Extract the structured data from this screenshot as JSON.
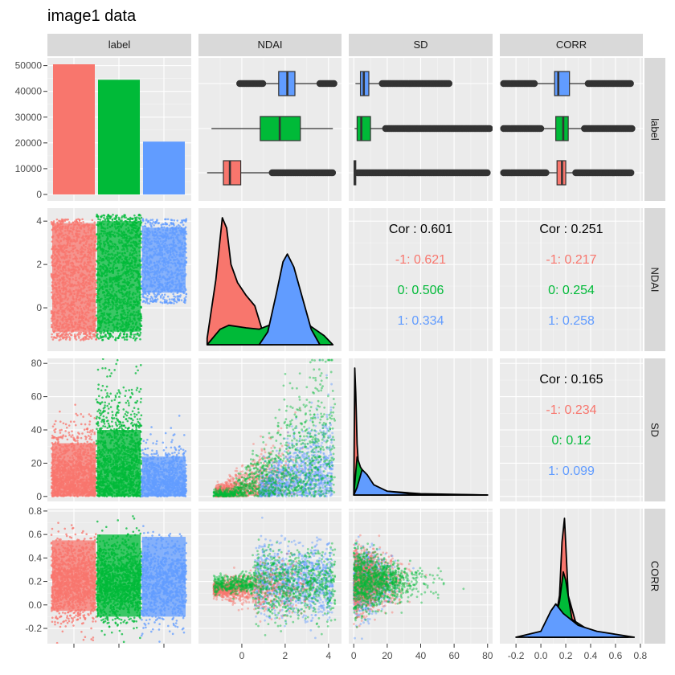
{
  "title": "image1 data",
  "colors": {
    "neg1": "#F8766D",
    "zero": "#00BA38",
    "one": "#619CFF",
    "panel": "#EBEBEB",
    "strip": "#D9D9D9",
    "grid": "#FFFFFF"
  },
  "chart_data": {
    "type": "pairs",
    "variables": [
      "label",
      "NDAI",
      "SD",
      "CORR"
    ],
    "groups": [
      "-1",
      "0",
      "1"
    ],
    "axes": {
      "label_count": {
        "ticks": [
          "0",
          "10000",
          "20000",
          "30000",
          "40000",
          "50000"
        ],
        "ylim": [
          -2500,
          53000
        ]
      },
      "NDAI": {
        "ticks": [
          "0",
          "2",
          "4"
        ],
        "xlim": [
          -2.0,
          4.6
        ],
        "y_ticks": [
          "0",
          "2",
          "4"
        ]
      },
      "SD": {
        "ticks": [
          "0",
          "20",
          "40",
          "60",
          "80"
        ],
        "xlim": [
          -3,
          83
        ]
      },
      "CORR": {
        "ticks": [
          "-0.2",
          "0.0",
          "0.2",
          "0.4",
          "0.6",
          "0.8"
        ],
        "ylim": [
          -0.33,
          0.82
        ],
        "x_ticks": [
          "-0.2",
          "0.0",
          "0.2",
          "0.4",
          "0.6",
          "0.8"
        ]
      }
    },
    "label_counts": [
      {
        "group": "-1",
        "value": 50500
      },
      {
        "group": "0",
        "value": 44500
      },
      {
        "group": "1",
        "value": 20500
      }
    ],
    "boxplots": {
      "NDAI": [
        {
          "group": "-1",
          "q1": -0.85,
          "median": -0.55,
          "q3": -0.05,
          "whisker_low": -1.6,
          "whisker_high": 1.4,
          "outlier_max": 4.2
        },
        {
          "group": "0",
          "q1": 0.85,
          "median": 1.75,
          "q3": 2.7,
          "whisker_low": -1.4,
          "whisker_high": 4.2
        },
        {
          "group": "1",
          "q1": 1.7,
          "median": 2.1,
          "q3": 2.45,
          "whisker_low": 1.0,
          "whisker_high": 3.6,
          "outlier_min": -0.1,
          "outlier_max": 4.3
        }
      ],
      "SD": [
        {
          "group": "-1",
          "q1": 0.2,
          "median": 0.5,
          "q3": 1.2,
          "whisker_low": 0,
          "whisker_high": 2.2,
          "outlier_max": 80
        },
        {
          "group": "0",
          "q1": 2,
          "median": 4.5,
          "q3": 10,
          "whisker_low": 0.5,
          "whisker_high": 19,
          "outlier_max": 82
        },
        {
          "group": "1",
          "q1": 4,
          "median": 6,
          "q3": 9,
          "whisker_low": 1,
          "whisker_high": 17,
          "outlier_max": 57
        }
      ],
      "CORR": [
        {
          "group": "-1",
          "q1": 0.13,
          "median": 0.17,
          "q3": 0.2,
          "whisker_low": 0.05,
          "whisker_high": 0.28,
          "outlier_min": -0.3,
          "outlier_max": 0.73
        },
        {
          "group": "0",
          "q1": 0.12,
          "median": 0.18,
          "q3": 0.22,
          "whisker_low": 0.0,
          "whisker_high": 0.35,
          "outlier_min": -0.3,
          "outlier_max": 0.74
        },
        {
          "group": "1",
          "q1": 0.11,
          "median": 0.14,
          "q3": 0.23,
          "whisker_low": -0.05,
          "whisker_high": 0.38,
          "outlier_min": -0.3,
          "outlier_max": 0.73
        }
      ]
    },
    "correlations": [
      {
        "pair": "NDAI-SD",
        "total": "Cor : 0.601",
        "groups": [
          {
            "group": "-1",
            "label": "-1: 0.621"
          },
          {
            "group": "0",
            "label": "0: 0.506"
          },
          {
            "group": "1",
            "label": "1: 0.334"
          }
        ]
      },
      {
        "pair": "NDAI-CORR",
        "total": "Cor : 0.251",
        "groups": [
          {
            "group": "-1",
            "label": "-1: 0.217"
          },
          {
            "group": "0",
            "label": "0: 0.254"
          },
          {
            "group": "1",
            "label": "1: 0.258"
          }
        ]
      },
      {
        "pair": "SD-CORR",
        "total": "Cor : 0.165",
        "groups": [
          {
            "group": "-1",
            "label": "-1: 0.234"
          },
          {
            "group": "0",
            "label": "0: 0.12"
          },
          {
            "group": "1",
            "label": "1: 0.099"
          }
        ]
      }
    ],
    "densities": {
      "NDAI": [
        {
          "group": "-1",
          "x": [
            -1.6,
            -1.2,
            -0.9,
            -0.7,
            -0.5,
            -0.2,
            0.2,
            0.6,
            1.0,
            1.4
          ],
          "y": [
            0.05,
            0.5,
            0.98,
            0.9,
            0.62,
            0.48,
            0.38,
            0.3,
            0.08,
            0.01
          ]
        },
        {
          "group": "0",
          "x": [
            -1.6,
            -1.0,
            -0.6,
            0.2,
            0.8,
            1.4,
            2.0,
            2.6,
            3.2,
            3.8,
            4.2
          ],
          "y": [
            0.0,
            0.12,
            0.15,
            0.13,
            0.12,
            0.16,
            0.22,
            0.2,
            0.14,
            0.07,
            0.0
          ]
        },
        {
          "group": "1",
          "x": [
            0.8,
            1.2,
            1.6,
            1.9,
            2.1,
            2.4,
            2.8,
            3.2,
            3.6
          ],
          "y": [
            0.0,
            0.1,
            0.4,
            0.64,
            0.7,
            0.6,
            0.36,
            0.12,
            0.0
          ]
        }
      ],
      "SD": [
        {
          "group": "-1",
          "x": [
            0,
            0.6,
            1.2,
            2,
            3,
            5,
            10,
            80
          ],
          "y": [
            0.0,
            1.0,
            0.8,
            0.4,
            0.2,
            0.05,
            0.01,
            0.0
          ]
        },
        {
          "group": "0",
          "x": [
            0,
            2,
            4,
            6,
            10,
            20,
            40,
            80
          ],
          "y": [
            0.0,
            0.3,
            0.22,
            0.18,
            0.08,
            0.03,
            0.01,
            0.0
          ]
        },
        {
          "group": "1",
          "x": [
            0,
            2,
            5,
            8,
            12,
            20,
            40,
            57
          ],
          "y": [
            0.0,
            0.06,
            0.2,
            0.16,
            0.08,
            0.03,
            0.0,
            0.0
          ]
        }
      ],
      "CORR": [
        {
          "group": "-1",
          "x": [
            -0.05,
            0.1,
            0.15,
            0.17,
            0.19,
            0.22,
            0.3,
            0.5
          ],
          "y": [
            0.0,
            0.05,
            0.35,
            0.8,
            1.0,
            0.35,
            0.05,
            0.0
          ]
        },
        {
          "group": "0",
          "x": [
            -0.1,
            0.1,
            0.15,
            0.18,
            0.2,
            0.25,
            0.4,
            0.7
          ],
          "y": [
            0.0,
            0.08,
            0.3,
            0.55,
            0.48,
            0.15,
            0.05,
            0.0
          ]
        },
        {
          "group": "1",
          "x": [
            -0.2,
            0.0,
            0.08,
            0.12,
            0.18,
            0.3,
            0.45,
            0.75
          ],
          "y": [
            0.0,
            0.05,
            0.22,
            0.28,
            0.2,
            0.1,
            0.05,
            0.0
          ]
        }
      ]
    },
    "grid": true,
    "legend": "none"
  }
}
